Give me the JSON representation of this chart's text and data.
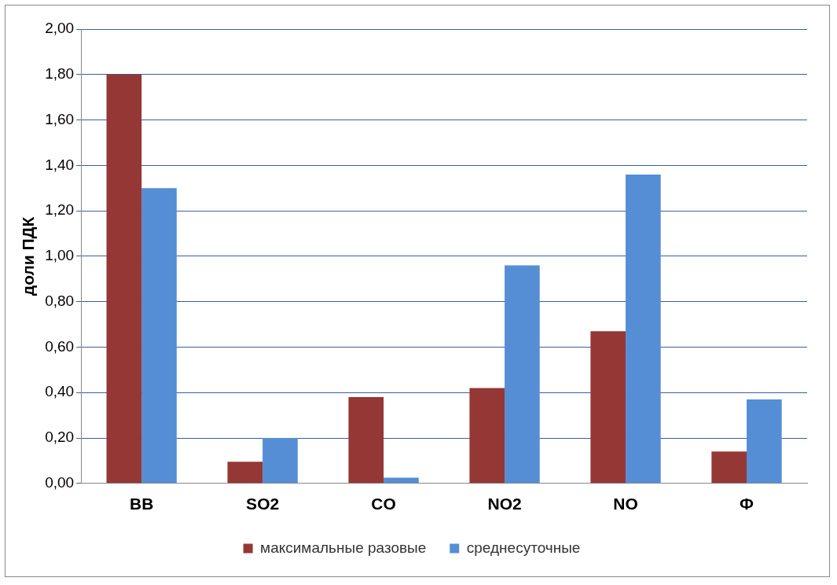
{
  "chart_data": {
    "type": "bar",
    "ylabel": "доли ПДК",
    "categories": [
      "ВВ",
      "SO2",
      "CO",
      "NO2",
      "NO",
      "Ф"
    ],
    "series": [
      {
        "name": "максимальные разовые",
        "color": "#953735",
        "values": [
          1.8,
          0.095,
          0.38,
          0.42,
          0.67,
          0.14
        ]
      },
      {
        "name": "среднесуточные",
        "color": "#558ed5",
        "values": [
          1.3,
          0.2,
          0.025,
          0.96,
          1.36,
          0.37
        ]
      }
    ],
    "ylim": [
      0,
      2
    ],
    "yticks": [
      {
        "value": 0,
        "label": "0,00"
      },
      {
        "value": 0.2,
        "label": "0,20"
      },
      {
        "value": 0.4,
        "label": "0,40"
      },
      {
        "value": 0.6,
        "label": "0,60"
      },
      {
        "value": 0.8,
        "label": "0,80"
      },
      {
        "value": 1,
        "label": "1,00"
      },
      {
        "value": 1.2,
        "label": "1,20"
      },
      {
        "value": 1.4,
        "label": "1,40"
      },
      {
        "value": 1.6,
        "label": "1,60"
      },
      {
        "value": 1.8,
        "label": "1,80"
      },
      {
        "value": 2,
        "label": "2,00"
      }
    ],
    "grid": "y",
    "legend": "bottom"
  }
}
